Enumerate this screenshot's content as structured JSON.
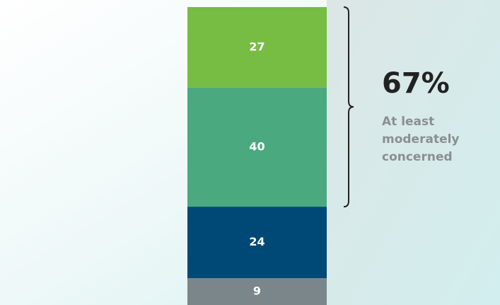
{
  "chart_data": {
    "type": "bar",
    "stacked": true,
    "series": [
      {
        "color": "#7b868a",
        "values": [
          9
        ]
      },
      {
        "color": "#004976",
        "values": [
          24
        ]
      },
      {
        "color": "#4aa97f",
        "values": [
          40
        ]
      },
      {
        "color": "#77bc43",
        "values": [
          27
        ]
      }
    ],
    "ylim": [
      0,
      100
    ],
    "annotation": {
      "value_label": "67%",
      "text_lines": [
        "At least",
        "moderately",
        "concerned"
      ]
    }
  }
}
